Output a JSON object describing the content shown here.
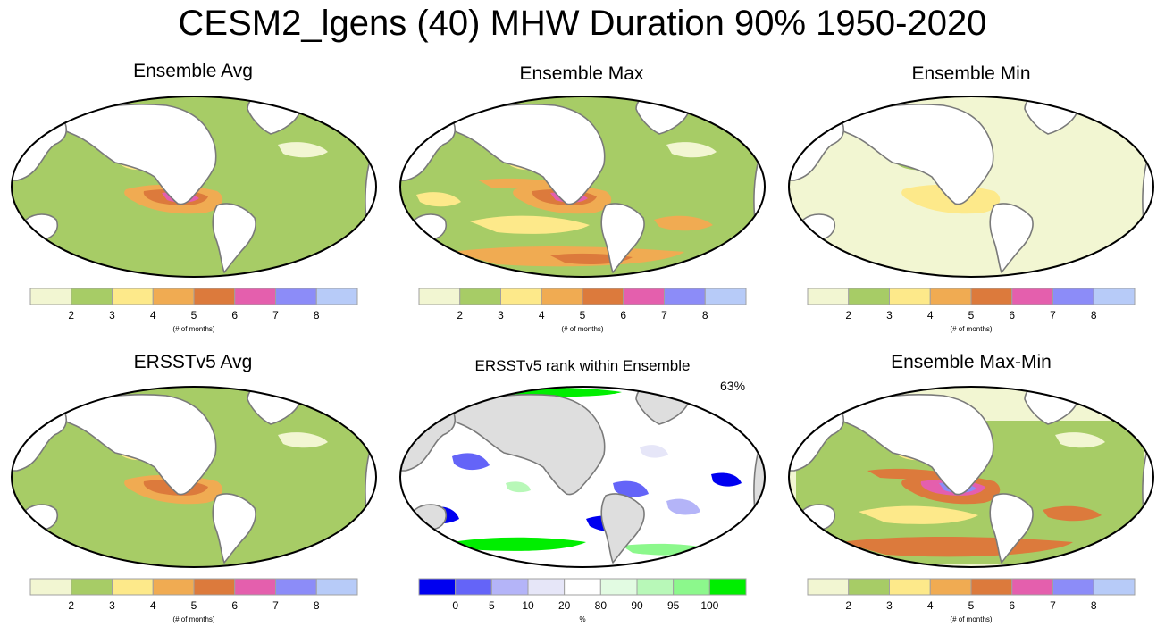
{
  "title": "CESM2_lgens (40) MHW Duration 90% 1950-2020",
  "colors": {
    "duration": [
      "#f2f6d2",
      "#a7cc66",
      "#fde98a",
      "#f0ab52",
      "#dc7a3c",
      "#e45fad",
      "#8c8cf8",
      "#b7cbf8"
    ],
    "rank": [
      "#0000f0",
      "#6464f8",
      "#b4b4f8",
      "#e6e6f8",
      "#ffffff",
      "#e2fbe2",
      "#b8f8b8",
      "#8cf88c",
      "#00ee00"
    ],
    "land": "#ffffff",
    "land_rank": "#dedede",
    "coast": "#7a7a7a"
  },
  "chart_data": [
    {
      "type": "heatmap",
      "title": "Ensemble Avg",
      "colorbar": {
        "ticks": [
          "2",
          "3",
          "4",
          "5",
          "6",
          "7",
          "8"
        ],
        "label": "(# of months)"
      }
    },
    {
      "type": "heatmap",
      "title": "Ensemble Max",
      "colorbar": {
        "ticks": [
          "2",
          "3",
          "4",
          "5",
          "6",
          "7",
          "8"
        ],
        "label": "(# of months)"
      }
    },
    {
      "type": "heatmap",
      "title": "Ensemble Min",
      "colorbar": {
        "ticks": [
          "2",
          "3",
          "4",
          "5",
          "6",
          "7",
          "8"
        ],
        "label": "(# of months)"
      }
    },
    {
      "type": "heatmap",
      "title": "ERSSTv5 Avg",
      "colorbar": {
        "ticks": [
          "2",
          "3",
          "4",
          "5",
          "6",
          "7",
          "8"
        ],
        "label": "(# of months)"
      }
    },
    {
      "type": "heatmap",
      "title": "ERSSTv5 rank within Ensemble",
      "annotation": "63%",
      "colorbar": {
        "ticks": [
          "0",
          "5",
          "10",
          "20",
          "80",
          "90",
          "95",
          "100"
        ],
        "label": "%"
      }
    },
    {
      "type": "heatmap",
      "title": "Ensemble Max-Min",
      "colorbar": {
        "ticks": [
          "2",
          "3",
          "4",
          "5",
          "6",
          "7",
          "8"
        ],
        "label": "(# of months)"
      }
    }
  ]
}
